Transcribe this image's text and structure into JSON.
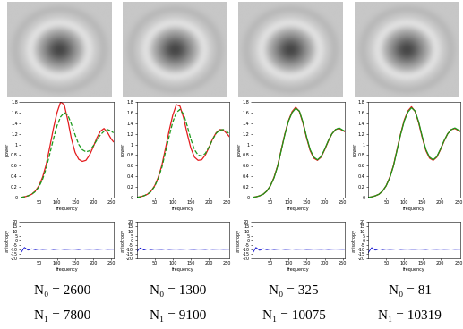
{
  "chart_data": [
    {
      "type": "line",
      "xlabel": "frequency",
      "ylabel": "power",
      "x": [
        0,
        10,
        20,
        30,
        40,
        50,
        60,
        70,
        80,
        90,
        100,
        110,
        120,
        130,
        140,
        150,
        160,
        170,
        180,
        190,
        200,
        210,
        220,
        230,
        240,
        250,
        256
      ],
      "series": [
        {
          "color": "#e41a1c",
          "line_style": "solid",
          "values": [
            0,
            0.01,
            0.03,
            0.06,
            0.12,
            0.22,
            0.38,
            0.62,
            0.95,
            1.3,
            1.6,
            1.8,
            1.75,
            1.45,
            1.1,
            0.85,
            0.72,
            0.68,
            0.7,
            0.8,
            0.95,
            1.12,
            1.25,
            1.3,
            1.22,
            1.1,
            1.05
          ]
        },
        {
          "color": "#1a9a1a",
          "line_style": "dashed",
          "values": [
            0,
            0.01,
            0.03,
            0.06,
            0.11,
            0.2,
            0.34,
            0.55,
            0.82,
            1.1,
            1.35,
            1.52,
            1.6,
            1.55,
            1.38,
            1.18,
            1.0,
            0.9,
            0.86,
            0.88,
            0.97,
            1.08,
            1.18,
            1.25,
            1.28,
            1.25,
            1.22
          ]
        }
      ],
      "xlim": [
        0,
        256
      ],
      "xticks": [
        50,
        100,
        150,
        200,
        250
      ],
      "ylim": [
        0,
        1.8
      ],
      "yticks": [
        0,
        0.2,
        0.4,
        0.6,
        0.8,
        1,
        1.2,
        1.4,
        1.6,
        1.8
      ]
    },
    {
      "type": "line",
      "xlabel": "frequency",
      "ylabel": "anisotropy",
      "x": [
        0,
        10,
        20,
        30,
        40,
        50,
        60,
        70,
        80,
        90,
        100,
        110,
        120,
        130,
        140,
        150,
        160,
        170,
        180,
        190,
        200,
        210,
        220,
        230,
        240,
        250,
        256
      ],
      "values": [
        -14,
        -8,
        -11,
        -9.5,
        -10.5,
        -9.8,
        -10.2,
        -10,
        -9.7,
        -10.3,
        -10,
        -9.8,
        -10.2,
        -10.1,
        -9.9,
        -10,
        -10.3,
        -9.8,
        -10,
        -10.1,
        -9.9,
        -10.2,
        -10,
        -9.8,
        -10.1,
        -10,
        -10
      ],
      "color": "#0000cc",
      "xlim": [
        0,
        256
      ],
      "xticks": [
        50,
        100,
        150,
        200,
        250
      ],
      "ylim": [
        -20,
        20
      ],
      "yticks": [
        -20,
        -15,
        -10,
        -5,
        0,
        5,
        10,
        15,
        20
      ],
      "annotations": [
        "N₀ = 2600",
        "N₁ = 7800"
      ]
    },
    {
      "type": "line",
      "xlabel": "frequency",
      "ylabel": "power",
      "x": [
        0,
        10,
        20,
        30,
        40,
        50,
        60,
        70,
        80,
        90,
        100,
        110,
        120,
        130,
        140,
        150,
        160,
        170,
        180,
        190,
        200,
        210,
        220,
        230,
        240,
        250,
        256
      ],
      "series": [
        {
          "color": "#e41a1c",
          "line_style": "solid",
          "values": [
            0,
            0.01,
            0.03,
            0.06,
            0.12,
            0.22,
            0.38,
            0.61,
            0.93,
            1.26,
            1.55,
            1.75,
            1.72,
            1.5,
            1.2,
            0.93,
            0.76,
            0.7,
            0.71,
            0.8,
            0.94,
            1.1,
            1.22,
            1.28,
            1.27,
            1.2,
            1.15
          ]
        },
        {
          "color": "#1a9a1a",
          "line_style": "dashed",
          "values": [
            0,
            0.01,
            0.03,
            0.06,
            0.11,
            0.21,
            0.36,
            0.57,
            0.86,
            1.15,
            1.42,
            1.6,
            1.66,
            1.57,
            1.35,
            1.1,
            0.9,
            0.8,
            0.78,
            0.83,
            0.95,
            1.09,
            1.21,
            1.27,
            1.28,
            1.24,
            1.2
          ]
        }
      ],
      "xlim": [
        0,
        256
      ],
      "xticks": [
        50,
        100,
        150,
        200,
        250
      ],
      "ylim": [
        0,
        1.8
      ],
      "yticks": [
        0,
        0.2,
        0.4,
        0.6,
        0.8,
        1,
        1.2,
        1.4,
        1.6,
        1.8
      ]
    },
    {
      "type": "line",
      "xlabel": "frequency",
      "ylabel": "anisotropy",
      "x": [
        0,
        10,
        20,
        30,
        40,
        50,
        60,
        70,
        80,
        90,
        100,
        110,
        120,
        130,
        140,
        150,
        160,
        170,
        180,
        190,
        200,
        210,
        220,
        230,
        240,
        250,
        256
      ],
      "values": [
        -13,
        -8.5,
        -10.8,
        -9.6,
        -10.4,
        -9.9,
        -10.1,
        -10.2,
        -9.8,
        -10.2,
        -10,
        -9.9,
        -10.1,
        -10,
        -9.8,
        -10.1,
        -10.2,
        -9.9,
        -10,
        -10.2,
        -9.8,
        -10.1,
        -10,
        -9.9,
        -10.1,
        -10,
        -10
      ],
      "color": "#0000cc",
      "xlim": [
        0,
        256
      ],
      "xticks": [
        50,
        100,
        150,
        200,
        250
      ],
      "ylim": [
        -20,
        20
      ],
      "yticks": [
        -20,
        -15,
        -10,
        -5,
        0,
        5,
        10,
        15,
        20
      ],
      "annotations": [
        "N₀ = 1300",
        "N₁ = 9100"
      ]
    },
    {
      "type": "line",
      "xlabel": "frequency",
      "ylabel": "power",
      "x": [
        0,
        10,
        20,
        30,
        40,
        50,
        60,
        70,
        80,
        90,
        100,
        110,
        120,
        130,
        140,
        150,
        160,
        170,
        180,
        190,
        200,
        210,
        220,
        230,
        240,
        250,
        256
      ],
      "series": [
        {
          "color": "#e41a1c",
          "line_style": "solid",
          "values": [
            0,
            0.01,
            0.03,
            0.06,
            0.12,
            0.22,
            0.38,
            0.6,
            0.9,
            1.2,
            1.45,
            1.62,
            1.7,
            1.62,
            1.4,
            1.12,
            0.88,
            0.74,
            0.7,
            0.76,
            0.9,
            1.06,
            1.2,
            1.28,
            1.3,
            1.26,
            1.24
          ]
        },
        {
          "color": "#1a9a1a",
          "line_style": "solid",
          "values": [
            0,
            0.01,
            0.03,
            0.06,
            0.12,
            0.22,
            0.37,
            0.59,
            0.89,
            1.19,
            1.44,
            1.6,
            1.68,
            1.63,
            1.42,
            1.14,
            0.9,
            0.76,
            0.71,
            0.77,
            0.91,
            1.07,
            1.2,
            1.28,
            1.31,
            1.27,
            1.25
          ]
        }
      ],
      "xlim": [
        0,
        256
      ],
      "xticks": [
        50,
        100,
        150,
        200,
        250
      ],
      "ylim": [
        0,
        1.8
      ],
      "yticks": [
        0,
        0.2,
        0.4,
        0.6,
        0.8,
        1,
        1.2,
        1.4,
        1.6,
        1.8
      ]
    },
    {
      "type": "line",
      "xlabel": "frequency",
      "ylabel": "anisotropy",
      "x": [
        0,
        10,
        20,
        30,
        40,
        50,
        60,
        70,
        80,
        90,
        100,
        110,
        120,
        130,
        140,
        150,
        160,
        170,
        180,
        190,
        200,
        210,
        220,
        230,
        240,
        250,
        256
      ],
      "values": [
        -15,
        -8,
        -11.2,
        -9.4,
        -10.5,
        -9.8,
        -10.3,
        -10,
        -9.8,
        -10.2,
        -10.1,
        -9.8,
        -10.1,
        -10,
        -9.9,
        -10.2,
        -10.1,
        -9.9,
        -10,
        -10.1,
        -9.9,
        -10.2,
        -10,
        -9.9,
        -10,
        -10.1,
        -10
      ],
      "color": "#0000cc",
      "xlim": [
        0,
        256
      ],
      "xticks": [
        50,
        100,
        150,
        200,
        250
      ],
      "ylim": [
        -20,
        20
      ],
      "yticks": [
        -20,
        -15,
        -10,
        -5,
        0,
        5,
        10,
        15,
        20
      ],
      "annotations": [
        "N₀ = 325",
        "N₁ = 10075"
      ]
    },
    {
      "type": "line",
      "xlabel": "frequency",
      "ylabel": "power",
      "x": [
        0,
        10,
        20,
        30,
        40,
        50,
        60,
        70,
        80,
        90,
        100,
        110,
        120,
        130,
        140,
        150,
        160,
        170,
        180,
        190,
        200,
        210,
        220,
        230,
        240,
        250,
        256
      ],
      "series": [
        {
          "color": "#e41a1c",
          "line_style": "solid",
          "values": [
            0,
            0.01,
            0.03,
            0.06,
            0.12,
            0.22,
            0.38,
            0.6,
            0.9,
            1.2,
            1.46,
            1.63,
            1.71,
            1.62,
            1.4,
            1.12,
            0.88,
            0.74,
            0.7,
            0.76,
            0.9,
            1.06,
            1.2,
            1.28,
            1.3,
            1.26,
            1.24
          ]
        },
        {
          "color": "#1a9a1a",
          "line_style": "solid",
          "values": [
            0,
            0.01,
            0.03,
            0.06,
            0.12,
            0.22,
            0.37,
            0.59,
            0.89,
            1.19,
            1.44,
            1.61,
            1.69,
            1.63,
            1.42,
            1.14,
            0.9,
            0.76,
            0.71,
            0.77,
            0.91,
            1.07,
            1.2,
            1.28,
            1.31,
            1.27,
            1.25
          ]
        }
      ],
      "xlim": [
        0,
        256
      ],
      "xticks": [
        50,
        100,
        150,
        200,
        250
      ],
      "ylim": [
        0,
        1.8
      ],
      "yticks": [
        0,
        0.2,
        0.4,
        0.6,
        0.8,
        1,
        1.2,
        1.4,
        1.6,
        1.8
      ]
    },
    {
      "type": "line",
      "xlabel": "frequency",
      "ylabel": "anisotropy",
      "x": [
        0,
        10,
        20,
        30,
        40,
        50,
        60,
        70,
        80,
        90,
        100,
        110,
        120,
        130,
        140,
        150,
        160,
        170,
        180,
        190,
        200,
        210,
        220,
        230,
        240,
        250,
        256
      ],
      "values": [
        -14,
        -8.2,
        -11,
        -9.6,
        -10.4,
        -9.9,
        -10.2,
        -10,
        -9.7,
        -10.2,
        -10,
        -9.9,
        -10.1,
        -10.1,
        -9.9,
        -10,
        -10.2,
        -9.8,
        -10,
        -10.1,
        -9.9,
        -10.1,
        -10,
        -9.8,
        -10.1,
        -10,
        -10
      ],
      "color": "#0000cc",
      "xlim": [
        0,
        256
      ],
      "xticks": [
        50,
        100,
        150,
        200,
        250
      ],
      "ylim": [
        -20,
        20
      ],
      "yticks": [
        -20,
        -15,
        -10,
        -5,
        0,
        5,
        10,
        15,
        20
      ],
      "annotations": [
        "N₀ = 81",
        "N₁ = 10319"
      ]
    }
  ]
}
